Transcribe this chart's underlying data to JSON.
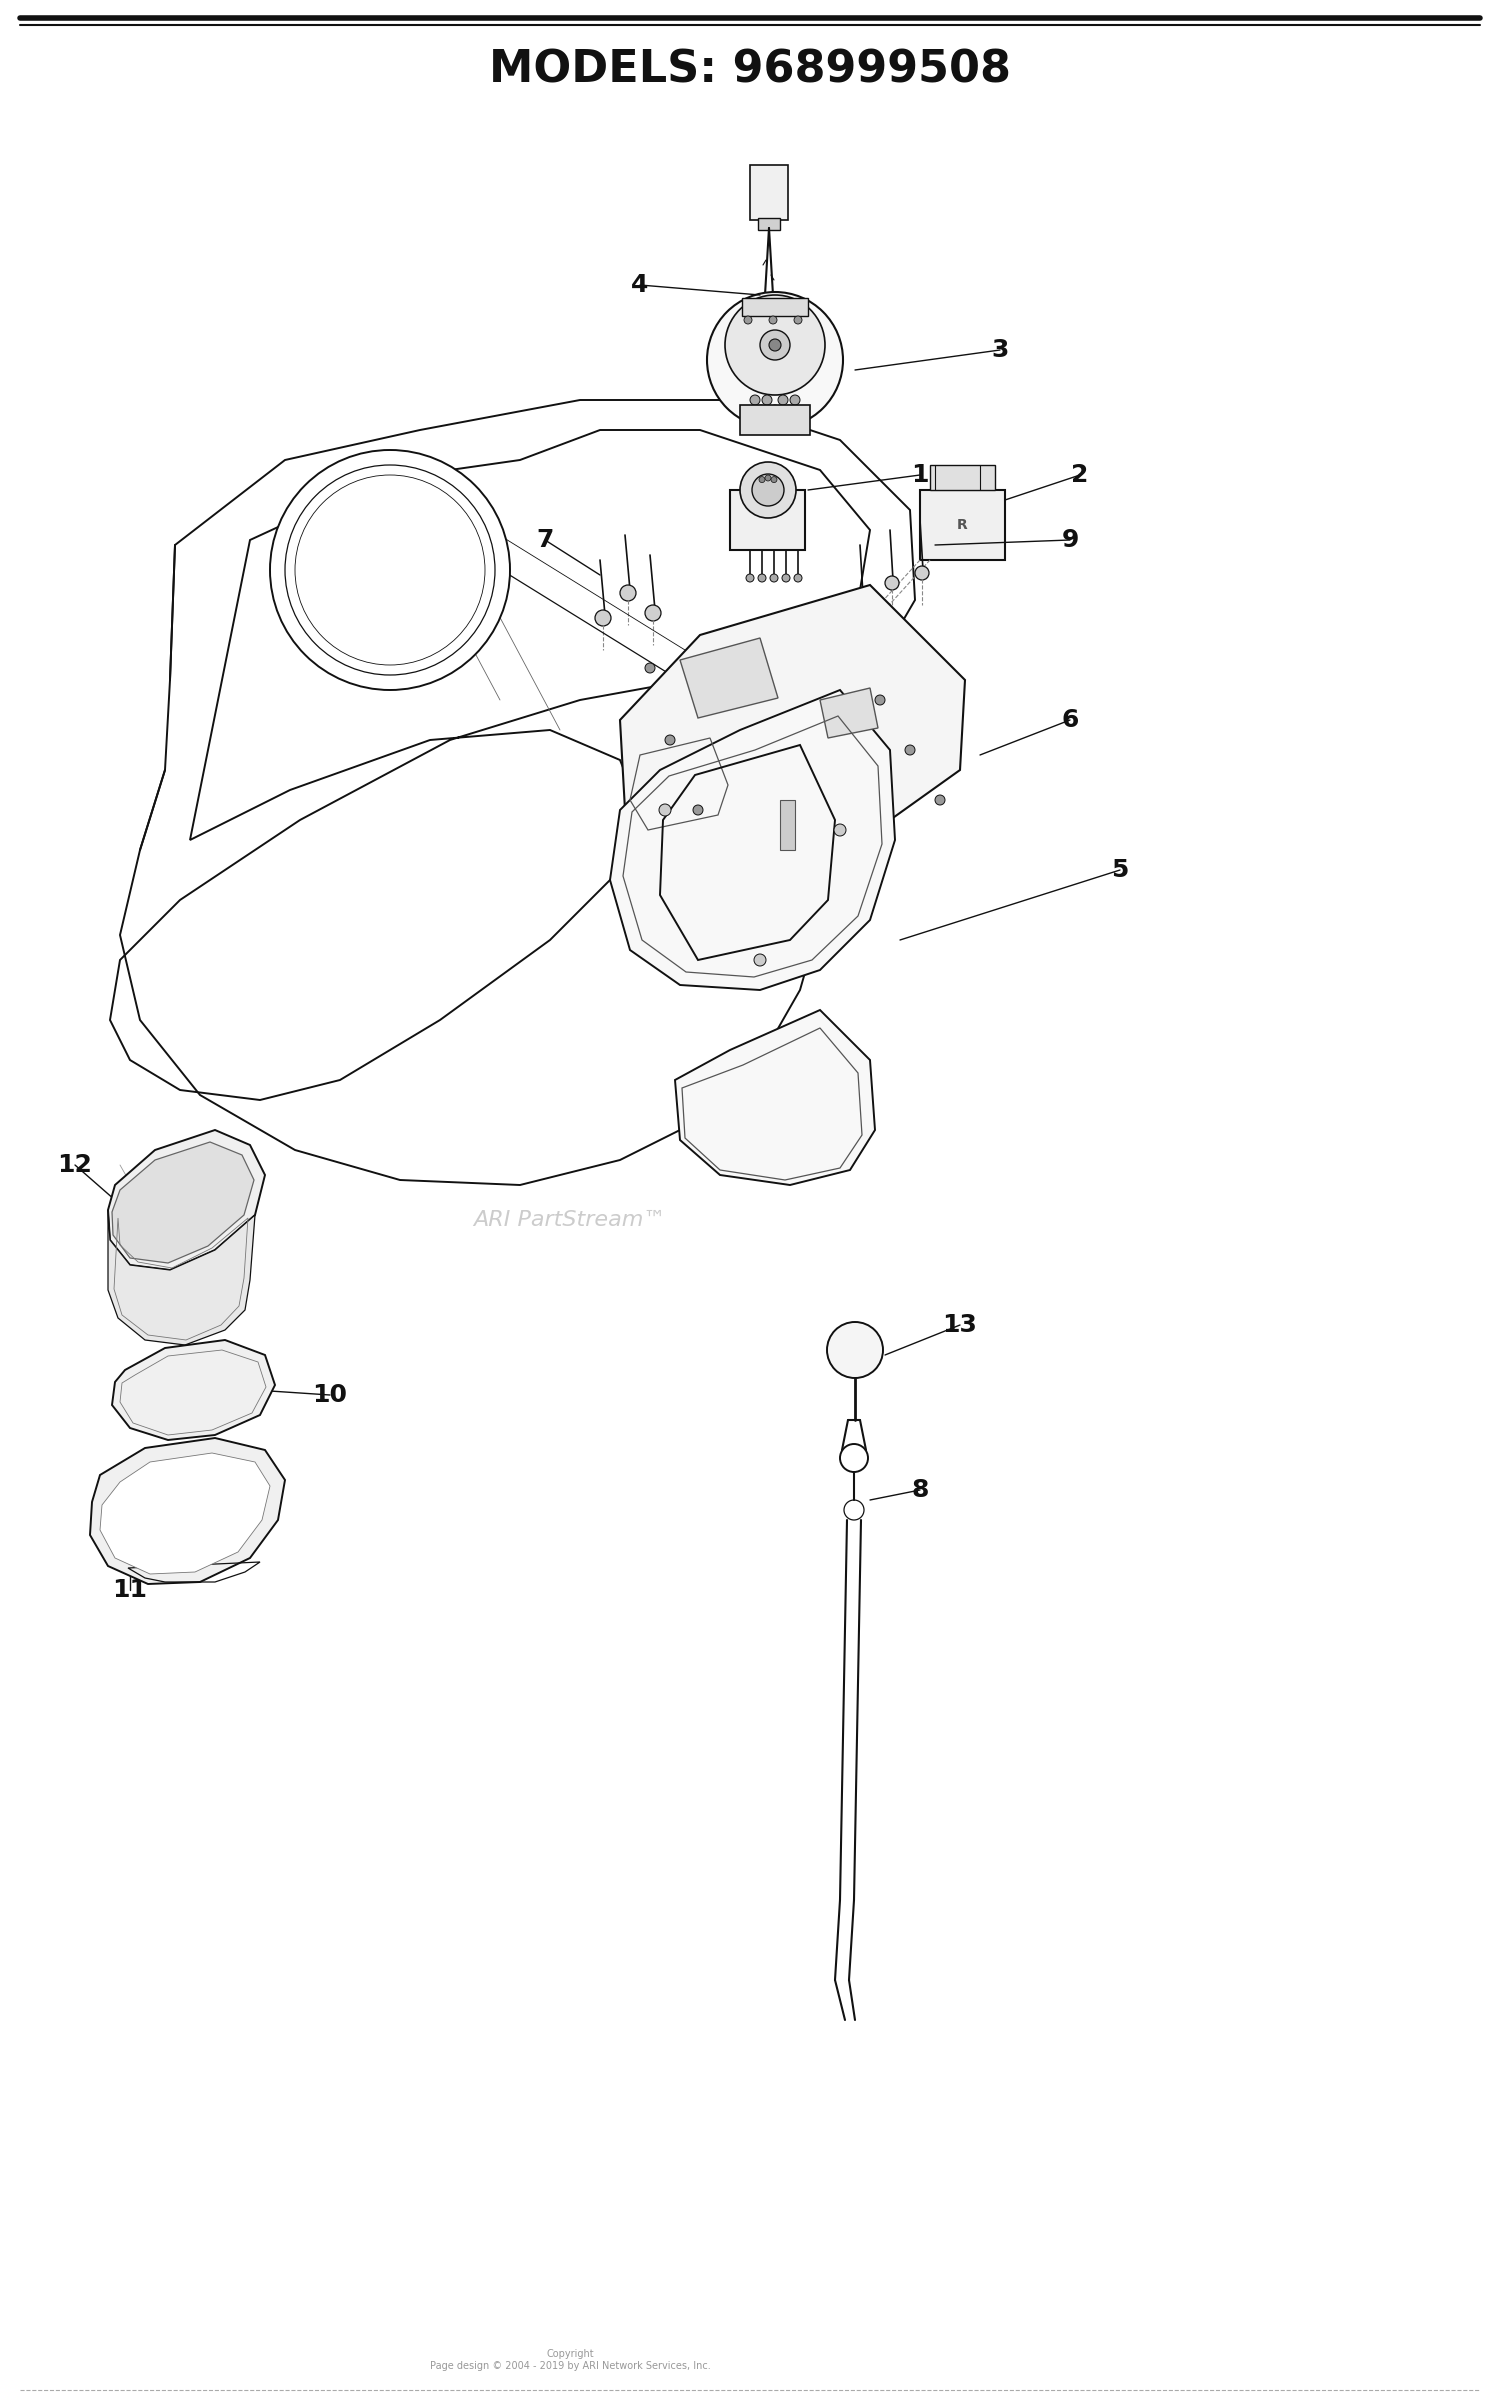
{
  "title": "MODELS: 968999508",
  "title_fontsize": 32,
  "title_fontweight": "bold",
  "background_color": "#ffffff",
  "text_color": "#111111",
  "watermark": "ARI PartStream™",
  "watermark_color": "#cccccc",
  "copyright_text": "Copyright\nPage design © 2004 - 2019 by ARI Network Services, Inc.",
  "fig_width": 15.0,
  "fig_height": 23.99,
  "dpi": 100,
  "lw_main": 1.4,
  "lw_detail": 0.9,
  "lw_thin": 0.6,
  "part_color": "#111111",
  "shade_color": "#555555"
}
